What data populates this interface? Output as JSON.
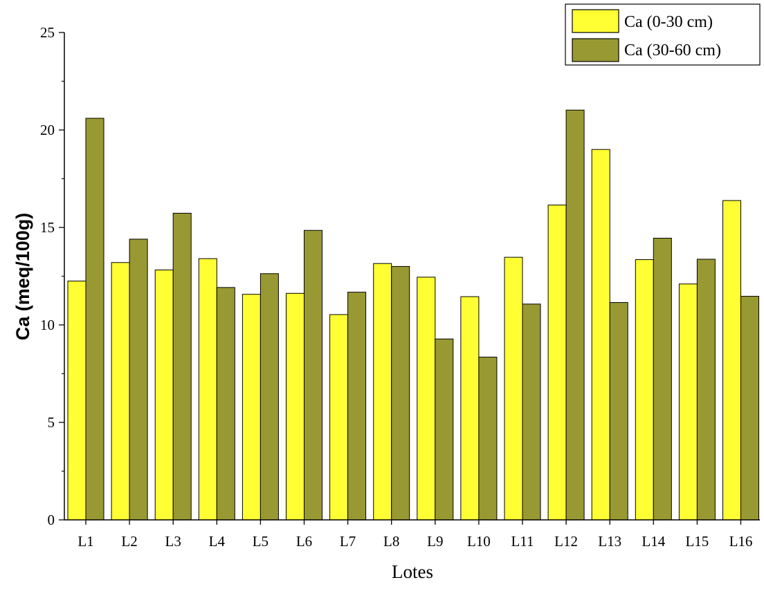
{
  "colors": {
    "series1": "#ffff33",
    "series2": "#999933",
    "stroke": "#000000"
  },
  "chart_data": {
    "type": "bar",
    "title": "",
    "xlabel": "Lotes",
    "ylabel": "Ca (meq/100g)",
    "ylim": [
      0,
      25
    ],
    "yticks": [
      0,
      5,
      10,
      15,
      20,
      25
    ],
    "legend_position": "top-right",
    "grid": false,
    "categories": [
      "L1",
      "L2",
      "L3",
      "L4",
      "L5",
      "L6",
      "L7",
      "L8",
      "L9",
      "L10",
      "L11",
      "L12",
      "L13",
      "L14",
      "L15",
      "L16"
    ],
    "series": [
      {
        "name": "Ca (0-30 cm)",
        "values": [
          12.25,
          13.2,
          12.82,
          13.4,
          11.57,
          11.62,
          10.53,
          13.15,
          12.45,
          11.45,
          13.47,
          16.15,
          19.0,
          13.35,
          12.1,
          16.38
        ]
      },
      {
        "name": "Ca (30-60 cm)",
        "values": [
          20.6,
          14.4,
          15.73,
          11.92,
          12.63,
          14.85,
          11.68,
          13.0,
          9.28,
          8.35,
          11.07,
          21.02,
          11.15,
          14.45,
          13.37,
          11.47
        ]
      }
    ]
  }
}
